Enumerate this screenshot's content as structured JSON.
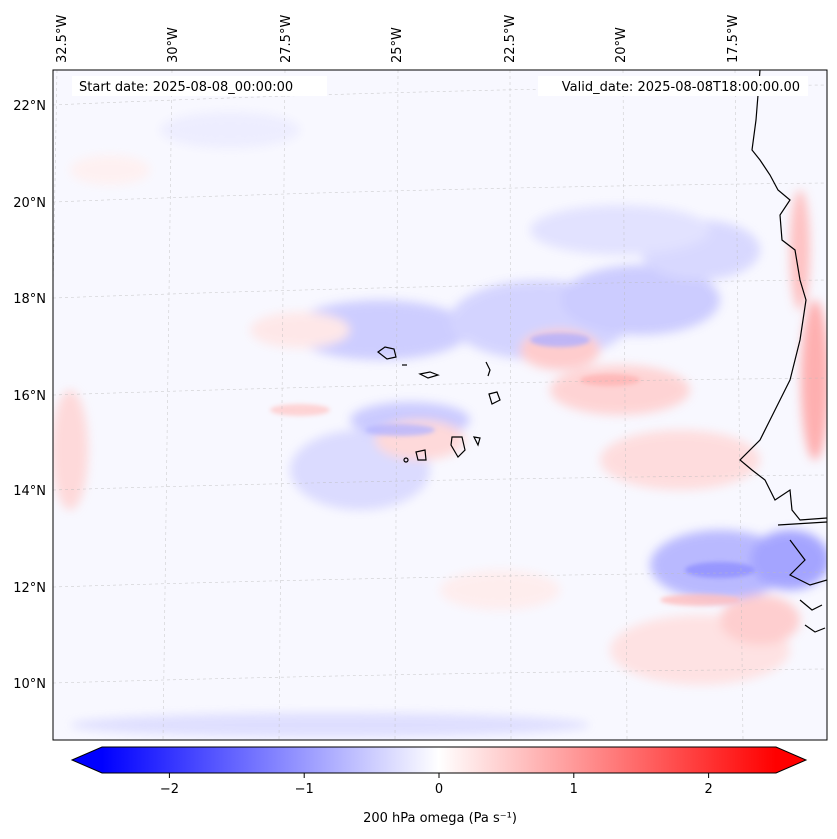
{
  "map": {
    "top_lon_labels": [
      "32.5°W",
      "30°W",
      "27.5°W",
      "25°W",
      "22.5°W",
      "20°W",
      "17.5°W"
    ],
    "left_lat_labels": [
      "22°N",
      "20°N",
      "18°N",
      "16°N",
      "14°N",
      "12°N",
      "10°N"
    ],
    "start_date": "Start date: 2025-08-08_00:00:00",
    "valid_date": "Valid_date: 2025-08-08T18:00:00.00",
    "gridlines": true,
    "coastlines": true
  },
  "colorbar": {
    "ticks": [
      "−2",
      "−1",
      "0",
      "1",
      "2"
    ],
    "tick_values": [
      -2,
      -1,
      0,
      1,
      2
    ],
    "range": [
      -2.5,
      2.5
    ],
    "label": "200 hPa omega (Pa s⁻¹)",
    "colors": {
      "min": "#0000ff",
      "mid": "#ffffff",
      "max": "#ff0000"
    },
    "extend": "both"
  },
  "chart_data": {
    "type": "heatmap",
    "title": "",
    "variable": "200 hPa omega",
    "units": "Pa s⁻¹",
    "xlabel": "",
    "ylabel": "",
    "lon_range": [
      -33,
      -14.8
    ],
    "lat_range": [
      9,
      22.8
    ],
    "color_range": [
      -2.5,
      2.5
    ],
    "colormap": "bwr",
    "features": [
      {
        "label": "Cape Verde islands",
        "lon": -24,
        "lat": 16
      },
      {
        "label": "West African coastline",
        "lon": -16.5,
        "lat": 14.5
      }
    ]
  }
}
